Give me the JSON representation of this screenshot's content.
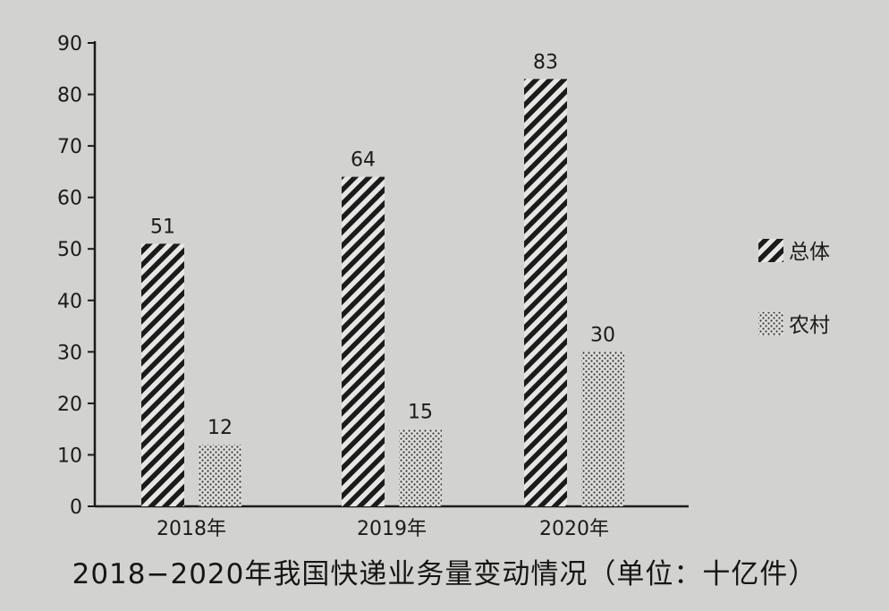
{
  "chart_data": {
    "type": "bar",
    "title": "2018−2020年我国快递业务量变动情况（单位：十亿件）",
    "categories": [
      "2018年",
      "2019年",
      "2020年"
    ],
    "series": [
      {
        "name": "总体",
        "values": [
          51,
          64,
          83
        ],
        "pattern": "diagonal-hatch",
        "color": "#1b1b1b"
      },
      {
        "name": "农村",
        "values": [
          12,
          15,
          30
        ],
        "pattern": "dot-stipple",
        "color": "#3a3a3a"
      }
    ],
    "ylim": [
      0,
      90
    ],
    "yticks": [
      0,
      10,
      20,
      30,
      40,
      50,
      60,
      70,
      80,
      90
    ],
    "xlabel": "",
    "ylabel": "",
    "grid": false,
    "legend_position": "right",
    "data_labels": true
  }
}
